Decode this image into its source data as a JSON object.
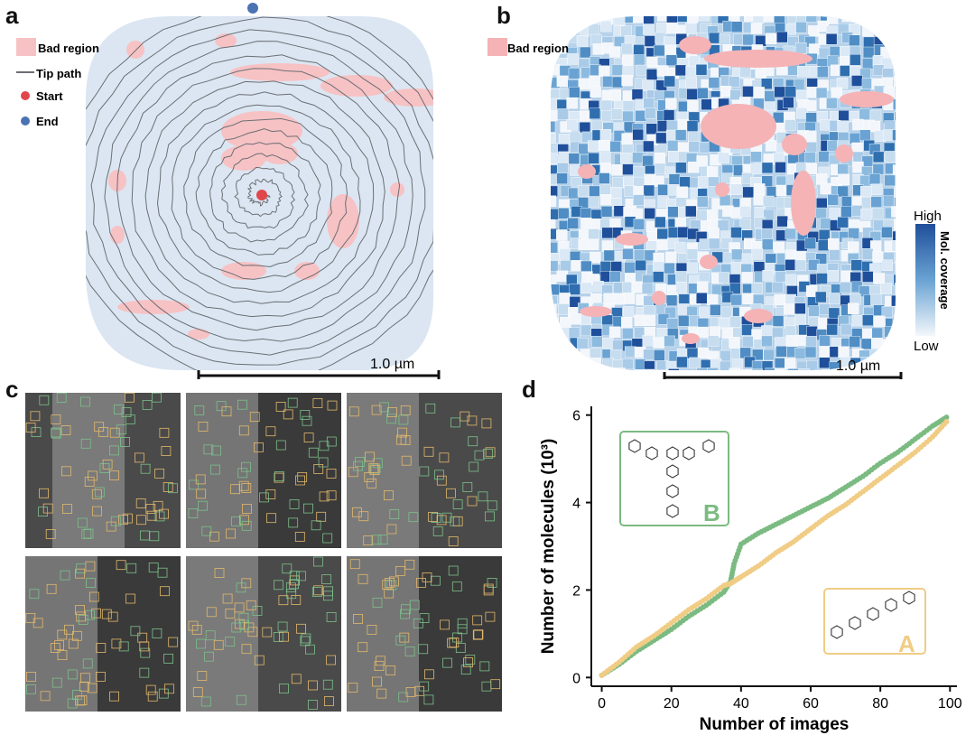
{
  "panels": {
    "a": {
      "letter": "a",
      "legend": {
        "bad_region": "Bad region",
        "tip_path": "Tip path",
        "start": "Start",
        "end": "End"
      },
      "scale_label": "1.0 µm",
      "colors": {
        "background": "#dbe6f2",
        "bad": "#f7c2c4",
        "path": "#6b6f74",
        "start": "#e0474c",
        "end": "#4b73b3"
      }
    },
    "b": {
      "letter": "b",
      "legend": {
        "bad_region": "Bad region"
      },
      "colorbar": {
        "high": "High",
        "low": "Low",
        "label": "Mol. coverage"
      },
      "scale_label": "1.0 µm",
      "colors": {
        "bad": "#f5b3b6",
        "high": "#1f4f9a",
        "low": "#f3f7fb"
      }
    },
    "c": {
      "letter": "c",
      "tiles": 6,
      "colors": {
        "box_a": "#e3b86b",
        "box_b": "#7cc08a"
      }
    },
    "d": {
      "letter": "d",
      "structure_b_label": "B",
      "structure_a_label": "A",
      "colors": {
        "B": "#7bbb82",
        "A": "#f0cc85"
      }
    }
  },
  "chart_data": {
    "type": "scatter",
    "xlabel": "Number of images",
    "ylabel": "Number of molecules (10³)",
    "xlim": [
      -3,
      102
    ],
    "ylim": [
      -0.2,
      6.2
    ],
    "xticks": [
      "0",
      "20",
      "40",
      "60",
      "80",
      "100"
    ],
    "yticks": [
      "0",
      "2",
      "4",
      "6"
    ],
    "series": [
      {
        "name": "B",
        "color": "#7bbb82",
        "x": [
          0,
          5,
          10,
          15,
          20,
          25,
          30,
          35,
          37,
          38,
          40,
          45,
          50,
          55,
          60,
          65,
          70,
          75,
          80,
          85,
          90,
          95,
          99
        ],
        "y": [
          0.05,
          0.3,
          0.6,
          0.85,
          1.1,
          1.4,
          1.65,
          1.95,
          2.2,
          2.6,
          3.05,
          3.3,
          3.5,
          3.7,
          3.9,
          4.1,
          4.35,
          4.6,
          4.9,
          5.15,
          5.45,
          5.75,
          5.95
        ]
      },
      {
        "name": "A",
        "color": "#f0cc85",
        "x": [
          0,
          5,
          10,
          15,
          20,
          25,
          30,
          35,
          37,
          40,
          45,
          50,
          55,
          60,
          65,
          70,
          75,
          80,
          85,
          90,
          95,
          99
        ],
        "y": [
          0.05,
          0.35,
          0.7,
          0.95,
          1.25,
          1.55,
          1.8,
          2.1,
          2.15,
          2.3,
          2.55,
          2.85,
          3.1,
          3.4,
          3.7,
          3.95,
          4.25,
          4.55,
          4.85,
          5.15,
          5.5,
          5.85
        ]
      }
    ]
  }
}
